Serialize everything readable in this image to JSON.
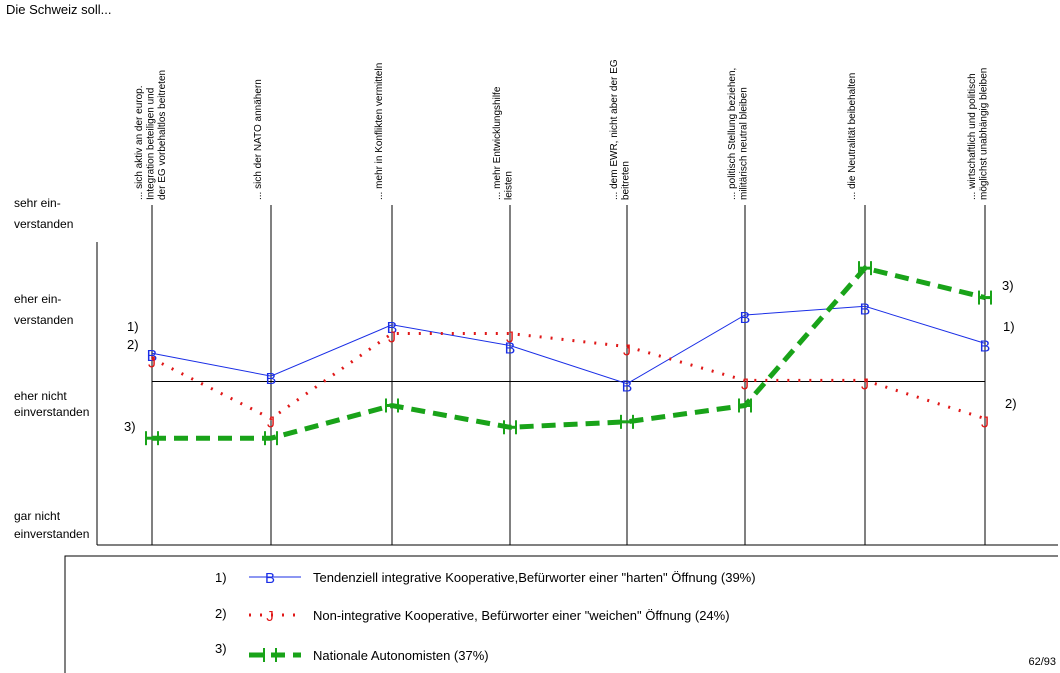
{
  "chart_data": {
    "type": "line",
    "title": "Die Schweiz soll...",
    "categories": [
      [
        "... sich aktiv an der europ.",
        "Integration beteiligen und",
        "der EG vorbehaltlos beitreten"
      ],
      [
        "... sich der NATO annähern"
      ],
      [
        "... mehr in Konflikten vermitteln"
      ],
      [
        "... mehr Entwicklungshilfe",
        "leisten"
      ],
      [
        "... dem EWR, nicht aber der EG",
        "beitreten"
      ],
      [
        "... politisch Stellung beziehen,",
        "militärisch neutral bleiben"
      ],
      [
        "... die Neutralität beibehalten"
      ],
      [
        "... wirtschaftlich und politisch",
        "möglichst unabhängig bleiben"
      ]
    ],
    "y_labels": [
      [
        "sehr ein-",
        "verstanden"
      ],
      [
        "eher ein-",
        "verstanden"
      ],
      [
        "eher nicht",
        "einverstanden"
      ],
      [
        "gar nicht",
        "einverstanden"
      ]
    ],
    "ylim": [
      1,
      4
    ],
    "reference_line": 2.5,
    "series": [
      {
        "name": "Tendenziell integrative Kooperative,Befürworter einer \"harten\" Öffnung (39%)",
        "marker": "B",
        "number": "1)",
        "color": "#1a2ee6",
        "values": [
          2.24,
          2.45,
          1.98,
          2.17,
          2.52,
          1.89,
          1.81,
          2.15
        ]
      },
      {
        "name": "Non-integrative Kooperative, Befürworter einer \"weichen\" Öffnung (24%)",
        "marker": "J",
        "number": "2)",
        "color": "#e01818",
        "values": [
          2.29,
          2.84,
          2.06,
          2.06,
          2.18,
          2.49,
          2.49,
          2.84
        ]
      },
      {
        "name": "Nationale Autonomisten (37%)",
        "marker": "H",
        "number": "3)",
        "color": "#19a319",
        "values": [
          3.02,
          3.02,
          2.72,
          2.92,
          2.87,
          2.72,
          1.46,
          1.73
        ]
      }
    ]
  },
  "page_number": "62/93"
}
